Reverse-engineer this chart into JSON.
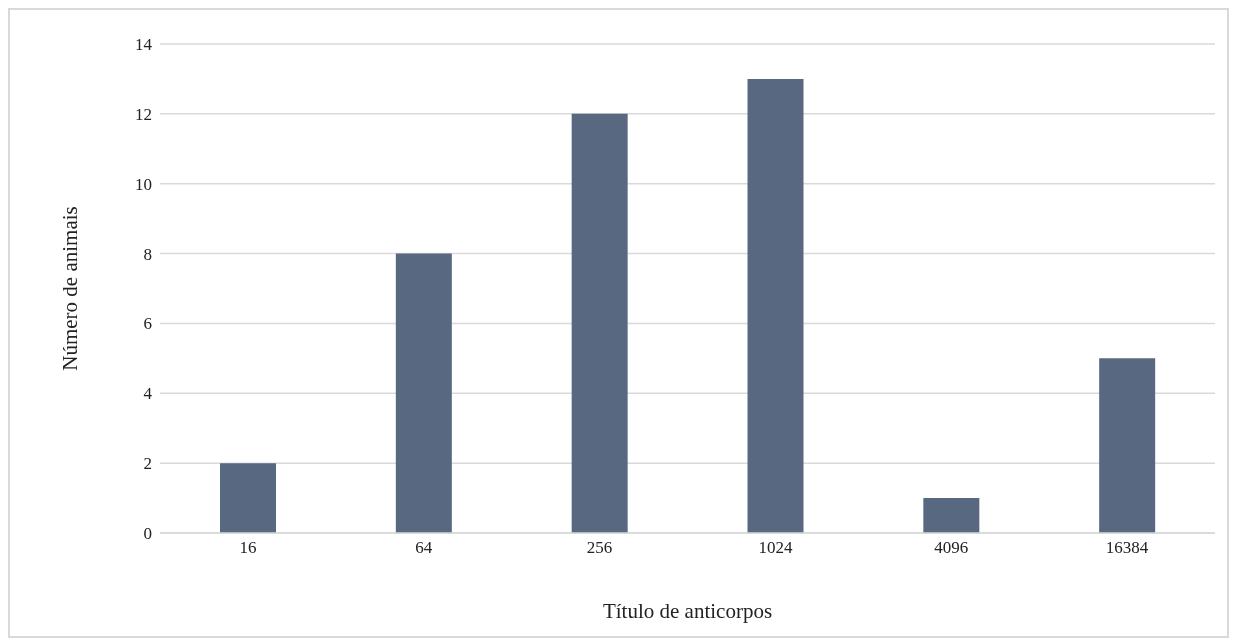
{
  "chart_data": {
    "type": "bar",
    "xlabel": "Título de anticorpos",
    "ylabel": "Número de animais",
    "categories": [
      "16",
      "64",
      "256",
      "1024",
      "4096",
      "16384"
    ],
    "values": [
      2,
      8,
      12,
      13,
      1,
      5
    ],
    "color": "#586881",
    "ylim": [
      0,
      14
    ],
    "yticks": [
      0,
      2,
      4,
      6,
      8,
      10,
      12,
      14
    ],
    "grid": "y"
  }
}
